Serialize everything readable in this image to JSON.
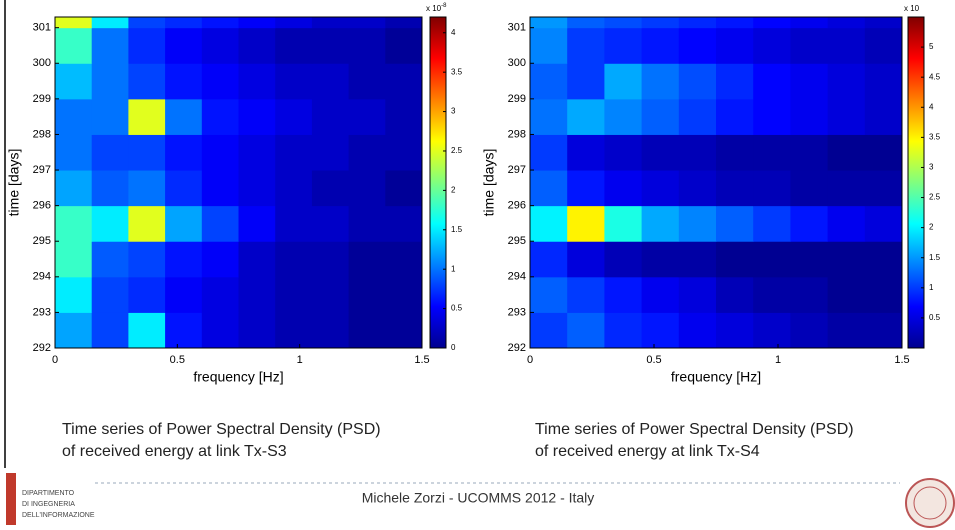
{
  "chart_data": [
    {
      "type": "heatmap",
      "xlabel": "frequency [Hz]",
      "ylabel": "time [days]",
      "xbins": [
        0,
        0.15,
        0.3,
        0.45,
        0.6,
        0.75,
        0.9,
        1.05,
        1.2,
        1.35,
        1.5
      ],
      "ybins": [
        292,
        293,
        294,
        295,
        296,
        297,
        298,
        299,
        300,
        301,
        301.3
      ],
      "xlim": [
        0,
        1.5
      ],
      "ylim": [
        292,
        301.3
      ],
      "xticks": [
        0,
        0.5,
        1,
        1.5
      ],
      "yticks": [
        292,
        293,
        294,
        295,
        296,
        297,
        298,
        299,
        300,
        301
      ],
      "clim": [
        0,
        4.2
      ],
      "cticks": [
        0,
        0.5,
        1,
        1.5,
        2,
        2.5,
        3,
        3.5,
        4
      ],
      "colorbar_label": "x 10",
      "colorbar_exponent": "-8",
      "colormap": "jet",
      "values": [
        [
          1.2,
          0.8,
          1.5,
          0.6,
          0.4,
          0.3,
          0.2,
          0.2,
          0.1,
          0.1
        ],
        [
          1.5,
          0.8,
          0.7,
          0.5,
          0.4,
          0.3,
          0.2,
          0.2,
          0.1,
          0.1
        ],
        [
          1.8,
          0.9,
          0.8,
          0.6,
          0.5,
          0.3,
          0.2,
          0.2,
          0.1,
          0.1
        ],
        [
          1.8,
          1.5,
          2.5,
          1.2,
          0.8,
          0.5,
          0.3,
          0.3,
          0.2,
          0.2
        ],
        [
          1.2,
          0.9,
          1.0,
          0.7,
          0.5,
          0.4,
          0.3,
          0.2,
          0.2,
          0.1
        ],
        [
          1.0,
          0.8,
          0.8,
          0.6,
          0.5,
          0.4,
          0.3,
          0.3,
          0.2,
          0.2
        ],
        [
          1.0,
          1.0,
          2.5,
          1.0,
          0.6,
          0.5,
          0.4,
          0.3,
          0.3,
          0.2
        ],
        [
          1.3,
          1.0,
          0.8,
          0.6,
          0.5,
          0.4,
          0.3,
          0.3,
          0.2,
          0.2
        ],
        [
          1.8,
          1.0,
          0.7,
          0.5,
          0.4,
          0.3,
          0.2,
          0.2,
          0.2,
          0.1
        ],
        [
          2.5,
          1.5,
          0.8,
          0.7,
          0.6,
          0.5,
          0.4,
          0.3,
          0.3,
          0.2
        ]
      ]
    },
    {
      "type": "heatmap",
      "xlabel": "frequency [Hz]",
      "ylabel": "time [days]",
      "xbins": [
        0,
        0.15,
        0.3,
        0.45,
        0.6,
        0.75,
        0.9,
        1.05,
        1.2,
        1.35,
        1.5
      ],
      "ybins": [
        292,
        293,
        294,
        295,
        296,
        297,
        298,
        299,
        300,
        301,
        301.3
      ],
      "xlim": [
        0,
        1.5
      ],
      "ylim": [
        292,
        301.3
      ],
      "xticks": [
        0,
        0.5,
        1,
        1.5
      ],
      "yticks": [
        292,
        293,
        294,
        295,
        296,
        297,
        298,
        299,
        300,
        301
      ],
      "clim": [
        0,
        5.5
      ],
      "cticks": [
        0.5,
        1,
        1.5,
        2,
        2.5,
        3,
        3.5,
        4,
        4.5,
        5
      ],
      "colorbar_label": "x 10",
      "colormap": "jet",
      "values": [
        [
          1.0,
          1.2,
          0.9,
          0.8,
          0.6,
          0.5,
          0.4,
          0.3,
          0.2,
          0.2
        ],
        [
          1.2,
          1.0,
          0.8,
          0.6,
          0.5,
          0.3,
          0.2,
          0.2,
          0.1,
          0.1
        ],
        [
          0.9,
          0.5,
          0.3,
          0.2,
          0.2,
          0.1,
          0.1,
          0.1,
          0.1,
          0.1
        ],
        [
          2.0,
          3.5,
          2.2,
          1.6,
          1.4,
          1.2,
          1.0,
          0.8,
          0.6,
          0.5
        ],
        [
          1.2,
          0.8,
          0.6,
          0.5,
          0.4,
          0.3,
          0.3,
          0.2,
          0.2,
          0.2
        ],
        [
          1.0,
          0.5,
          0.4,
          0.3,
          0.3,
          0.2,
          0.2,
          0.2,
          0.1,
          0.1
        ],
        [
          1.3,
          1.6,
          1.4,
          1.2,
          1.0,
          0.8,
          0.7,
          0.6,
          0.5,
          0.4
        ],
        [
          1.2,
          1.0,
          1.6,
          1.3,
          1.1,
          0.9,
          0.7,
          0.6,
          0.5,
          0.4
        ],
        [
          1.4,
          1.0,
          0.9,
          0.8,
          0.7,
          0.6,
          0.5,
          0.4,
          0.4,
          0.3
        ],
        [
          1.5,
          1.2,
          1.1,
          1.0,
          0.9,
          0.8,
          0.7,
          0.6,
          0.5,
          0.4
        ]
      ]
    }
  ],
  "captions": [
    [
      "Time series of Power Spectral Density (PSD)",
      "of received energy at link Tx-S3"
    ],
    [
      "Time series of Power Spectral Density (PSD)",
      "of received energy at link Tx-S4"
    ]
  ],
  "footer": "Michele Zorzi - UCOMMS 2012 - Italy",
  "logo": [
    "DIPARTIMENTO",
    "DI INGEGNERIA",
    "DELL'INFORMAZIONE"
  ]
}
